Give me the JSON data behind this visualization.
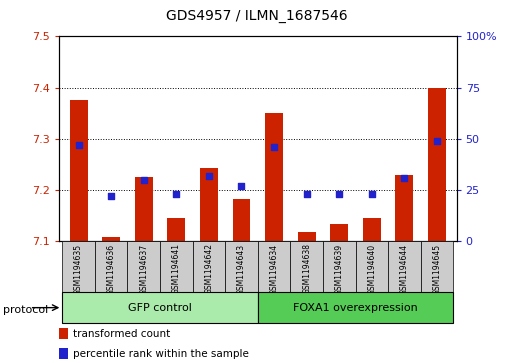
{
  "title": "GDS4957 / ILMN_1687546",
  "samples": [
    "GSM1194635",
    "GSM1194636",
    "GSM1194637",
    "GSM1194641",
    "GSM1194642",
    "GSM1194643",
    "GSM1194634",
    "GSM1194638",
    "GSM1194639",
    "GSM1194640",
    "GSM1194644",
    "GSM1194645"
  ],
  "transformed_counts": [
    7.375,
    7.108,
    7.225,
    7.145,
    7.243,
    7.182,
    7.35,
    7.118,
    7.133,
    7.145,
    7.23,
    7.4
  ],
  "percentile_ranks": [
    47,
    22,
    30,
    23,
    32,
    27,
    46,
    23,
    23,
    23,
    31,
    49
  ],
  "ylim_left": [
    7.1,
    7.5
  ],
  "ylim_right": [
    0,
    100
  ],
  "yticks_left": [
    7.1,
    7.2,
    7.3,
    7.4,
    7.5
  ],
  "yticks_right": [
    0,
    25,
    50,
    75,
    100
  ],
  "ytick_labels_right": [
    "0",
    "25",
    "50",
    "75",
    "100%"
  ],
  "groups": [
    {
      "label": "GFP control",
      "start": 0,
      "end": 6,
      "color": "#AAEAAA"
    },
    {
      "label": "FOXA1 overexpression",
      "start": 6,
      "end": 12,
      "color": "#55CC55"
    }
  ],
  "bar_color": "#CC2200",
  "dot_color": "#2222CC",
  "bar_width": 0.55,
  "protocol_label": "protocol",
  "legend_items": [
    {
      "label": "transformed count",
      "color": "#CC2200"
    },
    {
      "label": "percentile rank within the sample",
      "color": "#2222CC"
    }
  ],
  "grid_color": "black",
  "tick_color_left": "#CC2200",
  "tick_color_right": "#2222CC",
  "background_color": "#FFFFFF",
  "plot_bg_color": "#FFFFFF",
  "xticklabel_bg": "#CCCCCC"
}
